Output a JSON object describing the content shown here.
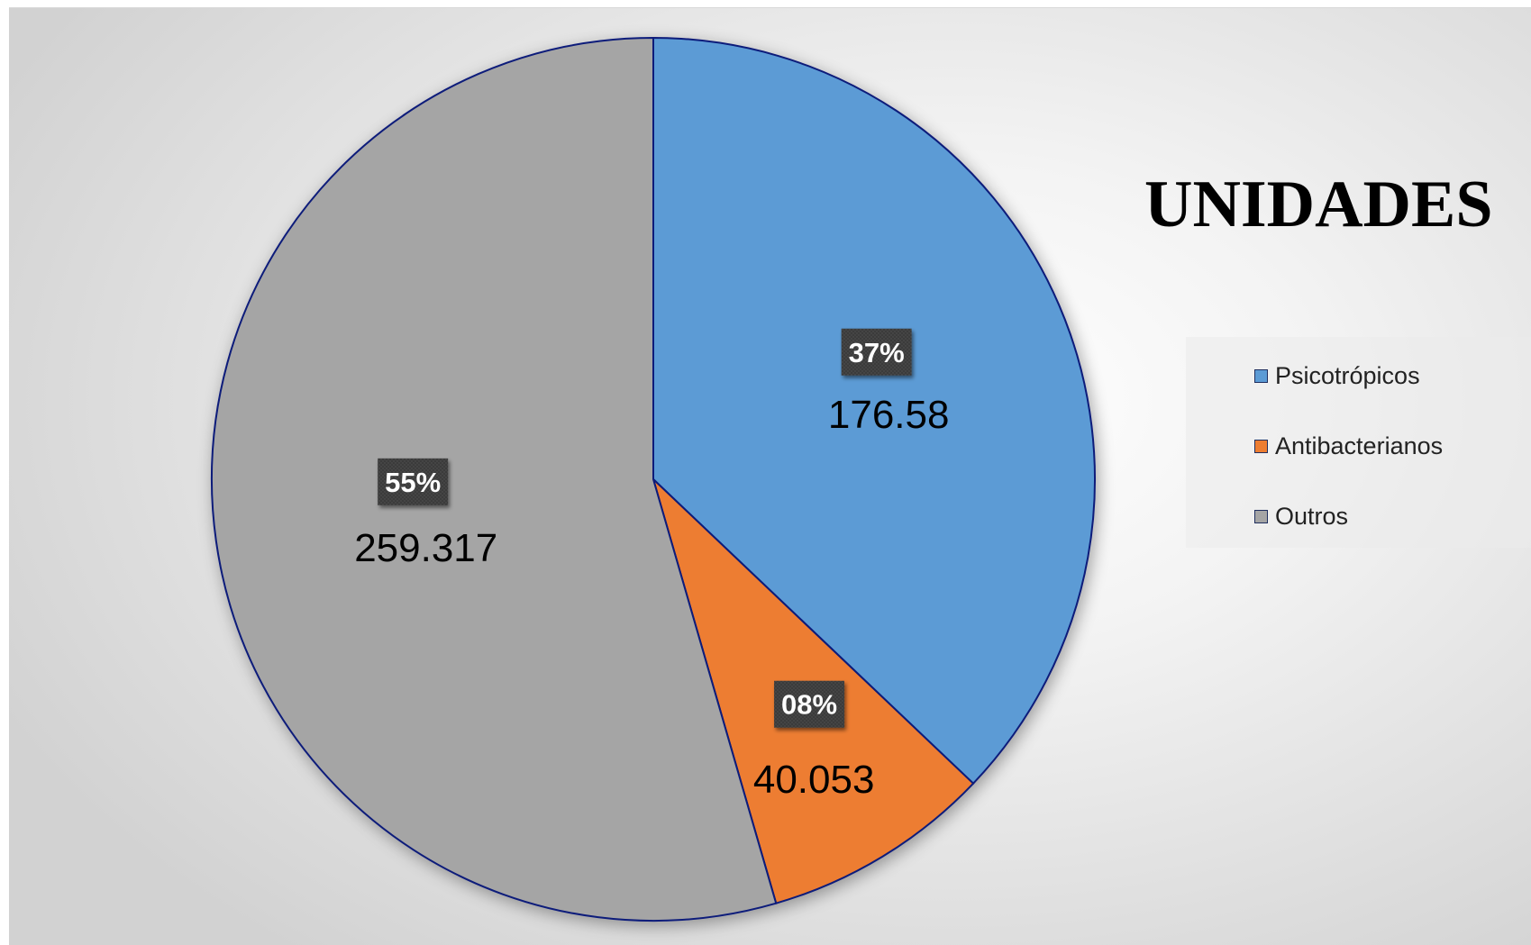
{
  "chart_data": {
    "type": "pie",
    "title": "UNIDADES",
    "categories": [
      "Psicotrópicos",
      "Antibacterianos",
      "Outros"
    ],
    "values": [
      176.58,
      40.053,
      259.317
    ],
    "value_labels": [
      "176.58",
      "40.053",
      "259.317"
    ],
    "percent_labels": [
      "37%",
      "08%",
      "55%"
    ],
    "colors": [
      "#5b9bd5",
      "#ed7d31",
      "#a5a5a5"
    ],
    "slice_border_color": "#0b1a7a",
    "start_angle": "12 o'clock",
    "direction": "clockwise",
    "legend_position": "right"
  }
}
